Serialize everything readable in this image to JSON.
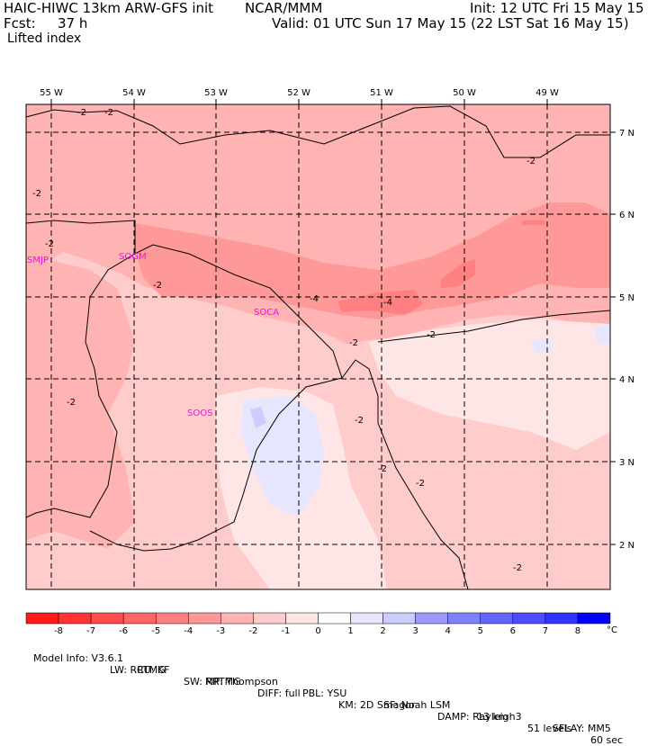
{
  "header": {
    "model": "HAIC-HIWC 13km ARW-GFS init",
    "org": "NCAR/MMM",
    "init": "Init: 12 UTC Fri 15 May 15",
    "fcst_label": "Fcst:",
    "fcst_value": "37 h",
    "valid": "Valid: 01 UTC Sun 17 May 15 (22 LST Sat 16 May 15)",
    "field": "Lifted index"
  },
  "map": {
    "lon_labels": [
      "55 W",
      "54 W",
      "53 W",
      "52 W",
      "51 W",
      "50 W",
      "49 W"
    ],
    "lat_labels": [
      "7 N",
      "6 N",
      "5 N",
      "4 N",
      "3 N",
      "2 N"
    ],
    "stations": [
      "SMJP",
      "SOGM",
      "SOCA",
      "SOOS"
    ],
    "contour_labels": [
      "-2",
      "-2",
      "-2",
      "-2",
      "-2",
      "-2",
      "-2",
      "-2",
      "-2",
      "-2",
      "-4",
      "-4",
      "-2",
      "-2",
      "-2"
    ]
  },
  "colorbar": {
    "ticks": [
      "-8",
      "-7",
      "-6",
      "-5",
      "-4",
      "-3",
      "-2",
      "-1",
      "0",
      "1",
      "2",
      "3",
      "4",
      "5",
      "6",
      "7",
      "8"
    ],
    "unit": "°C",
    "colors": [
      "#ff1a1a",
      "#ff3333",
      "#ff4d4d",
      "#ff6666",
      "#ff8080",
      "#ff9999",
      "#ffb3b3",
      "#ffcccc",
      "#ffe6e6",
      "#ffffff",
      "#e6e6ff",
      "#ccccff",
      "#9999ff",
      "#8080ff",
      "#6666ff",
      "#4d4dff",
      "#3333ff",
      "#0000ff"
    ]
  },
  "footer": {
    "line1": [
      "Model Info: V3.6.1",
      "CU: KF",
      "MP: Thompson",
      "PBL: YSU",
      "SF: Noah LSM",
      "13 km",
      "51 levels",
      "60 sec"
    ],
    "line2": [
      "LW: RRTMG",
      "SW: RRTMG",
      "DIFF: full",
      "KM: 2D Smagor",
      "DAMP: Rayleigh3",
      "SFLAY: MM5"
    ]
  }
}
